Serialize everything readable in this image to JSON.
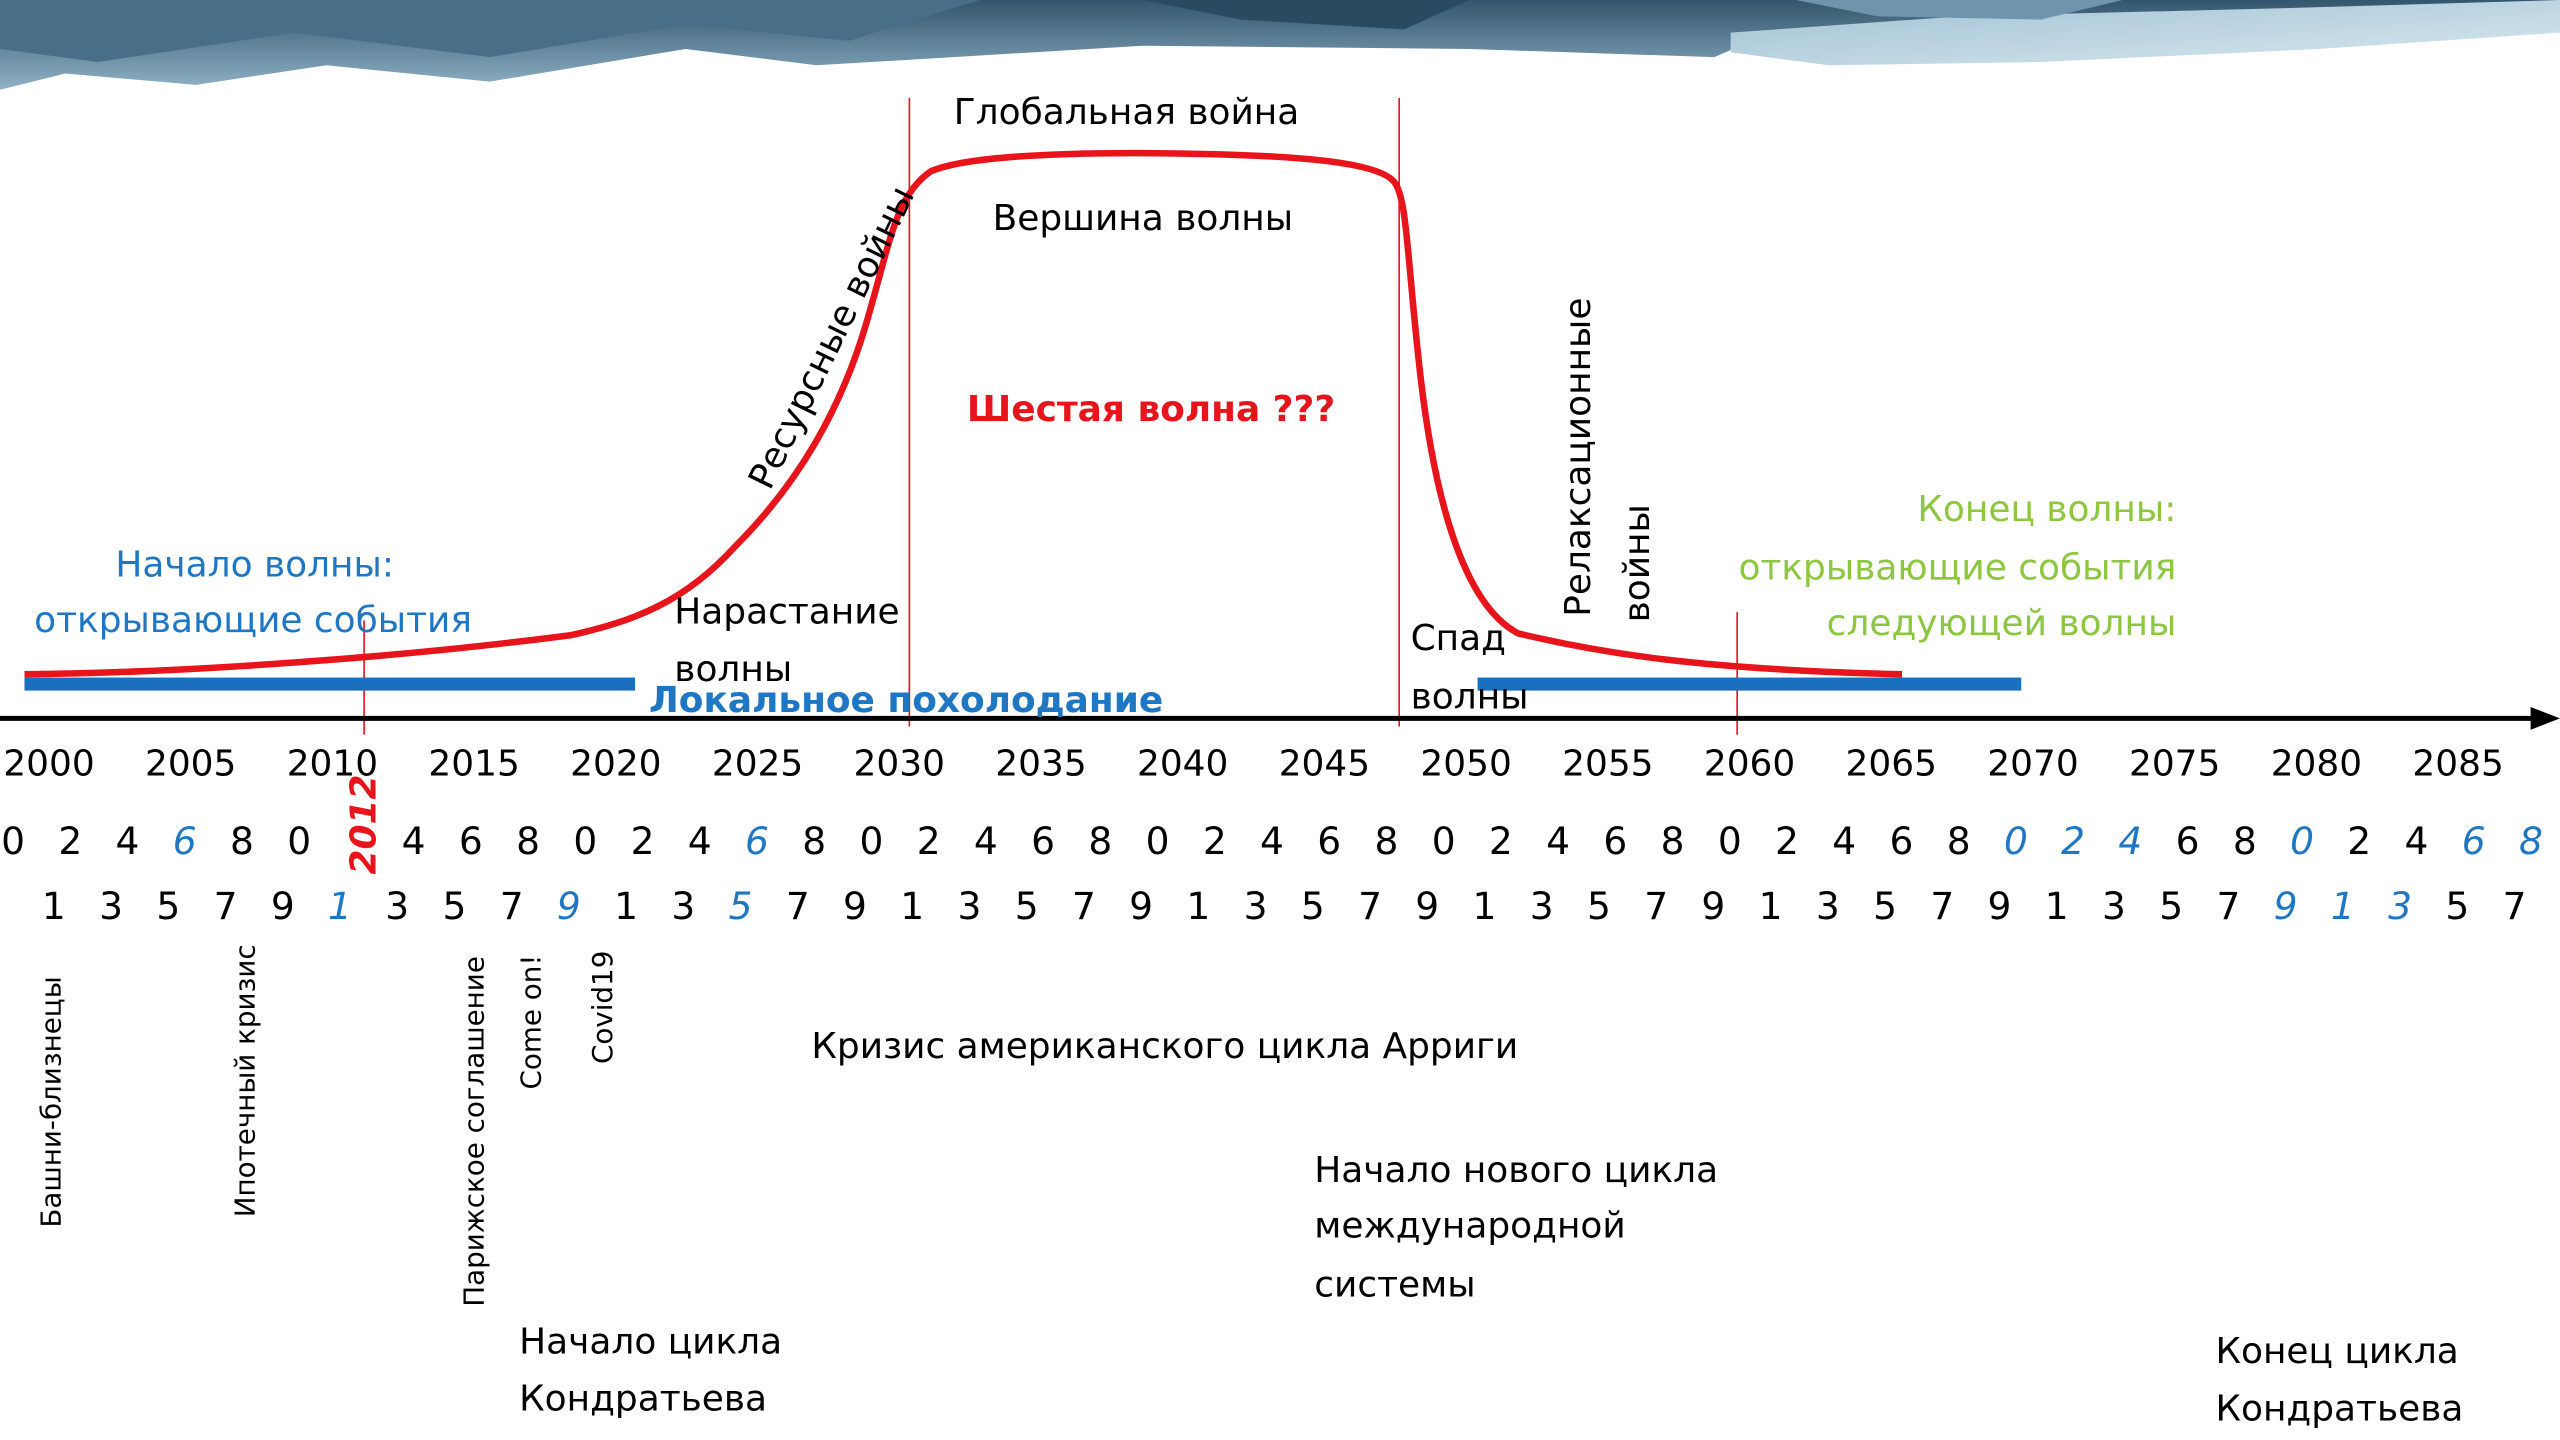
{
  "wave": {
    "top_label": "Глобальная война",
    "peak_label": "Вершина волны",
    "title": "Шестая волна ???",
    "rise_wars": "Ресурсные войны",
    "start": [
      "Начало волны:",
      "открывающие события"
    ],
    "growth": [
      "Нарастание",
      "волны"
    ],
    "cooling": "Локальное похолодание",
    "decline": [
      "Спад",
      "волны"
    ],
    "relax_wars": [
      "Релаксационные",
      "войны"
    ],
    "end": [
      "Конец волны:",
      "открывающие события",
      "следующей волны"
    ]
  },
  "timeline": {
    "years": [
      "2000",
      "2005",
      "2010",
      "2015",
      "2020",
      "2025",
      "2030",
      "2035",
      "2040",
      "2045",
      "2050",
      "2055",
      "2060",
      "2065",
      "2070",
      "2075",
      "2080",
      "2085"
    ],
    "marker_year": "2012",
    "even_digits": [
      "0",
      "2",
      "4",
      "6",
      "8",
      "0",
      null,
      "4",
      "6",
      "8",
      "0",
      "2",
      "4",
      "6",
      "8",
      "0",
      "2",
      "4",
      "6",
      "8",
      "0",
      "2",
      "4",
      "6",
      "8",
      "0",
      "2",
      "4",
      "6",
      "8",
      "0",
      "2",
      "4",
      "6",
      "8",
      "0",
      "2",
      "4",
      "6",
      "8",
      "0",
      "2",
      "4",
      "6",
      "8"
    ],
    "even_accent": [
      3,
      13,
      35,
      36,
      37,
      40,
      43,
      44
    ],
    "odd_digits": [
      "1",
      "3",
      "5",
      "7",
      "9",
      "1",
      "3",
      "5",
      "7",
      "9",
      "1",
      "3",
      "5",
      "7",
      "9",
      "1",
      "3",
      "5",
      "7",
      "9",
      "1",
      "3",
      "5",
      "7",
      "9",
      "1",
      "3",
      "5",
      "7",
      "9",
      "1",
      "3",
      "5",
      "7",
      "9",
      "1",
      "3",
      "5",
      "7",
      "9",
      "1",
      "3",
      "5",
      "7"
    ],
    "odd_accent": [
      5,
      9,
      12,
      39,
      40,
      41
    ]
  },
  "events": [
    "Башни-близнецы",
    "Ипотечный кризис",
    "Парижское соглашение",
    "Come on!",
    "Covid19"
  ],
  "notes": {
    "arrighi": "Кризис американского цикла Арриги",
    "new_cycle": [
      "Начало нового цикла",
      "международной",
      "системы"
    ],
    "kondratiev_start": [
      "Начало цикла",
      "Кондратьева"
    ],
    "kondratiev_end": [
      "Конец цикла",
      "Кондратьева"
    ]
  }
}
